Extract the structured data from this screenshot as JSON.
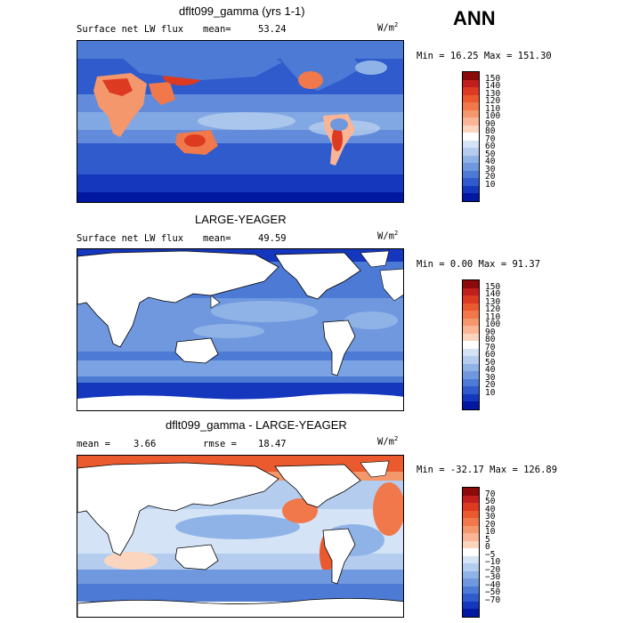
{
  "header": {
    "corner_label": "ANN"
  },
  "panels": [
    {
      "title": "dflt099_gamma (yrs 1-1)",
      "variable": "Surface net LW flux",
      "stat_label": "mean=",
      "stat_value": "53.24",
      "units": "W/m",
      "units_exp": "2",
      "minmax": "Min =  16.25 Max = 151.30",
      "colorbar_ticks": [
        "150",
        "140",
        "130",
        "120",
        "110",
        "100",
        "90",
        "80",
        "70",
        "60",
        "50",
        "40",
        "30",
        "20",
        "10"
      ],
      "colorbar_colors": [
        "#8b0a0a",
        "#c11f1f",
        "#dd3a22",
        "#ea5a2e",
        "#f0784a",
        "#f5976c",
        "#f9b596",
        "#fcd5bf",
        "#ffffff",
        "#d4e4f6",
        "#b4cdef",
        "#90b3e7",
        "#6f98de",
        "#4c7ad5",
        "#2f5bcc",
        "#1537bd",
        "#0018a0"
      ]
    },
    {
      "title": "LARGE-YEAGER",
      "variable": "Surface net LW flux",
      "stat_label": "mean=",
      "stat_value": "49.59",
      "units": "W/m",
      "units_exp": "2",
      "minmax": "Min =   0.00 Max =  91.37",
      "colorbar_ticks": [
        "150",
        "140",
        "130",
        "120",
        "110",
        "100",
        "90",
        "80",
        "70",
        "60",
        "50",
        "40",
        "30",
        "20",
        "10"
      ],
      "colorbar_colors": [
        "#8b0a0a",
        "#c11f1f",
        "#dd3a22",
        "#ea5a2e",
        "#f0784a",
        "#f5976c",
        "#f9b596",
        "#fcd5bf",
        "#ffffff",
        "#d4e4f6",
        "#b4cdef",
        "#90b3e7",
        "#6f98de",
        "#4c7ad5",
        "#2f5bcc",
        "#1537bd",
        "#0018a0"
      ]
    },
    {
      "title": "dflt099_gamma - LARGE-YEAGER",
      "stat_label": "mean =",
      "stat_value": "3.66",
      "rmse_label": "rmse =",
      "rmse_value": "18.47",
      "units": "W/m",
      "units_exp": "2",
      "minmax": "Min = -32.17 Max = 126.89",
      "colorbar_ticks": [
        "70",
        "50",
        "40",
        "30",
        "20",
        "10",
        "5",
        "0",
        "−5",
        "−10",
        "−20",
        "−30",
        "−40",
        "−50",
        "−70"
      ],
      "colorbar_colors": [
        "#8b0a0a",
        "#c11f1f",
        "#dd3a22",
        "#ea5a2e",
        "#f0784a",
        "#f5976c",
        "#f9b596",
        "#fcd5bf",
        "#ffffff",
        "#d4e4f6",
        "#b4cdef",
        "#90b3e7",
        "#6f98de",
        "#4c7ad5",
        "#2f5bcc",
        "#1537bd",
        "#0018a0"
      ]
    }
  ]
}
